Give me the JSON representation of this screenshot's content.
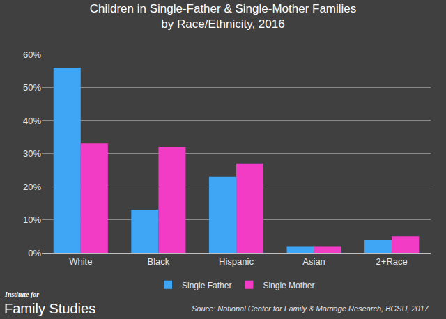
{
  "chart_data": {
    "type": "bar",
    "title": [
      "Children in Single-Father & Single-Mother Families",
      "by Race/Ethnicity, 2016"
    ],
    "categories": [
      "White",
      "Black",
      "Hispanic",
      "Asian",
      "2+Race"
    ],
    "series": [
      {
        "name": "Single Father",
        "color": "#3ea6f5",
        "values": [
          56,
          13,
          23,
          2,
          4
        ]
      },
      {
        "name": "Single Mother",
        "color": "#f23cc6",
        "values": [
          33,
          32,
          27,
          2,
          5
        ]
      }
    ],
    "ylim": [
      0,
      60
    ],
    "yticks": [
      {
        "value": 0,
        "label": "0%"
      },
      {
        "value": 10,
        "label": "10%"
      },
      {
        "value": 20,
        "label": "20%"
      },
      {
        "value": 30,
        "label": "30%"
      },
      {
        "value": 40,
        "label": "40%"
      },
      {
        "value": 50,
        "label": "50%"
      },
      {
        "value": 60,
        "label": "60%"
      }
    ],
    "grid": true,
    "legend": "bottom",
    "branding": [
      "Institute for",
      "Family Studies"
    ],
    "source": "Souce: National Center for Family & Marriage Research, BGSU, 2017"
  }
}
